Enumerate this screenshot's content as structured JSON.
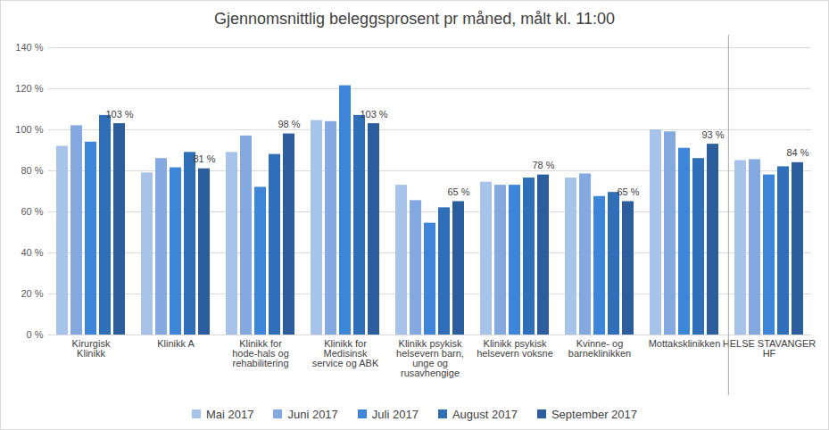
{
  "chart_data": {
    "type": "bar",
    "title": "Gjennomsnittlig beleggsprosent pr måned, målt kl. 11:00",
    "categories": [
      "Kirurgisk Klinikk",
      "Klinikk A",
      "Klinikk for hode-hals og rehabilitering",
      "Klinikk for Medisinsk service og ABK",
      "Klinikk psykisk helsevern barn, unge og rusavhengige",
      "Klinikk psykisk helsevern voksne",
      "Kvinne- og barneklinikken",
      "Mottaksklinikken",
      "HELSE STAVANGER HF"
    ],
    "series": [
      {
        "name": "Mai 2017",
        "color": "#a8c3ea",
        "values": [
          92,
          79,
          89,
          104.5,
          73,
          74.5,
          76.5,
          100,
          85
        ]
      },
      {
        "name": "Juni 2017",
        "color": "#84a9e0",
        "values": [
          102,
          86,
          97,
          104,
          65.5,
          73,
          78.5,
          99,
          85.5
        ]
      },
      {
        "name": "Juli 2017",
        "color": "#3d85d8",
        "values": [
          94,
          81.5,
          72,
          121.5,
          54.5,
          73,
          67.5,
          91,
          78
        ]
      },
      {
        "name": "August 2017",
        "color": "#2f6eb8",
        "values": [
          107,
          89,
          88,
          107,
          62,
          76.5,
          69.5,
          86,
          82
        ]
      },
      {
        "name": "September 2017",
        "color": "#2c5d9c",
        "values": [
          103,
          81,
          98,
          103,
          65,
          78,
          65,
          93,
          84
        ],
        "data_labels": true,
        "value_labels": [
          "103 %",
          "81 %",
          "98 %",
          "103 %",
          "65 %",
          "78 %",
          "65 %",
          "93 %",
          "84 %"
        ]
      }
    ],
    "ylim": [
      0,
      140
    ],
    "yticks": [
      {
        "value": 0,
        "label": "0 %"
      },
      {
        "value": 20,
        "label": "20 %"
      },
      {
        "value": 40,
        "label": "40 %"
      },
      {
        "value": 60,
        "label": "60 %"
      },
      {
        "value": 80,
        "label": "80 %"
      },
      {
        "value": 100,
        "label": "100 %"
      },
      {
        "value": 120,
        "label": "120 %"
      },
      {
        "value": 140,
        "label": "140 %"
      }
    ],
    "grid": true,
    "legend": "bottom"
  }
}
